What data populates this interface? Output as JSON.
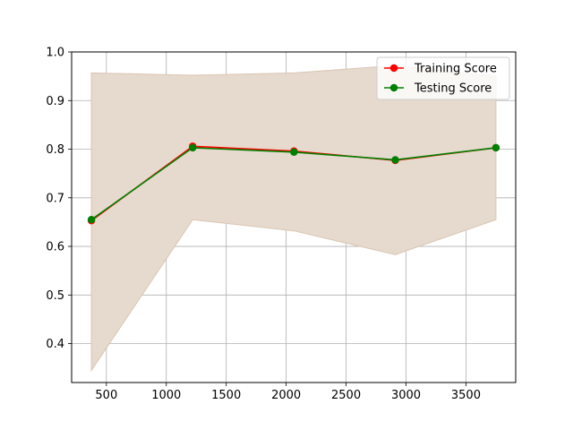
{
  "chart_data": {
    "type": "line",
    "title": "",
    "xlabel": "",
    "ylabel": "",
    "x": [
      375,
      1220,
      2065,
      2910,
      3750
    ],
    "xlim": [
      210,
      3915
    ],
    "ylim": [
      0.32,
      1.0
    ],
    "xticks": [
      500,
      1000,
      1500,
      2000,
      2500,
      3000,
      3500
    ],
    "yticks": [
      0.4,
      0.5,
      0.6,
      0.7,
      0.8,
      0.9,
      1.0
    ],
    "grid": true,
    "legend_position": "top-right",
    "band": {
      "color": "#e6d9cd",
      "upper": [
        0.957,
        0.952,
        0.957,
        0.972,
        0.95
      ],
      "lower": [
        0.345,
        0.655,
        0.632,
        0.583,
        0.655
      ]
    },
    "series": [
      {
        "name": "Training Score",
        "color": "#ff0000",
        "values": [
          0.653,
          0.806,
          0.796,
          0.777,
          0.803
        ]
      },
      {
        "name": "Testing Score",
        "color": "#008000",
        "values": [
          0.655,
          0.803,
          0.794,
          0.778,
          0.803
        ]
      }
    ]
  }
}
